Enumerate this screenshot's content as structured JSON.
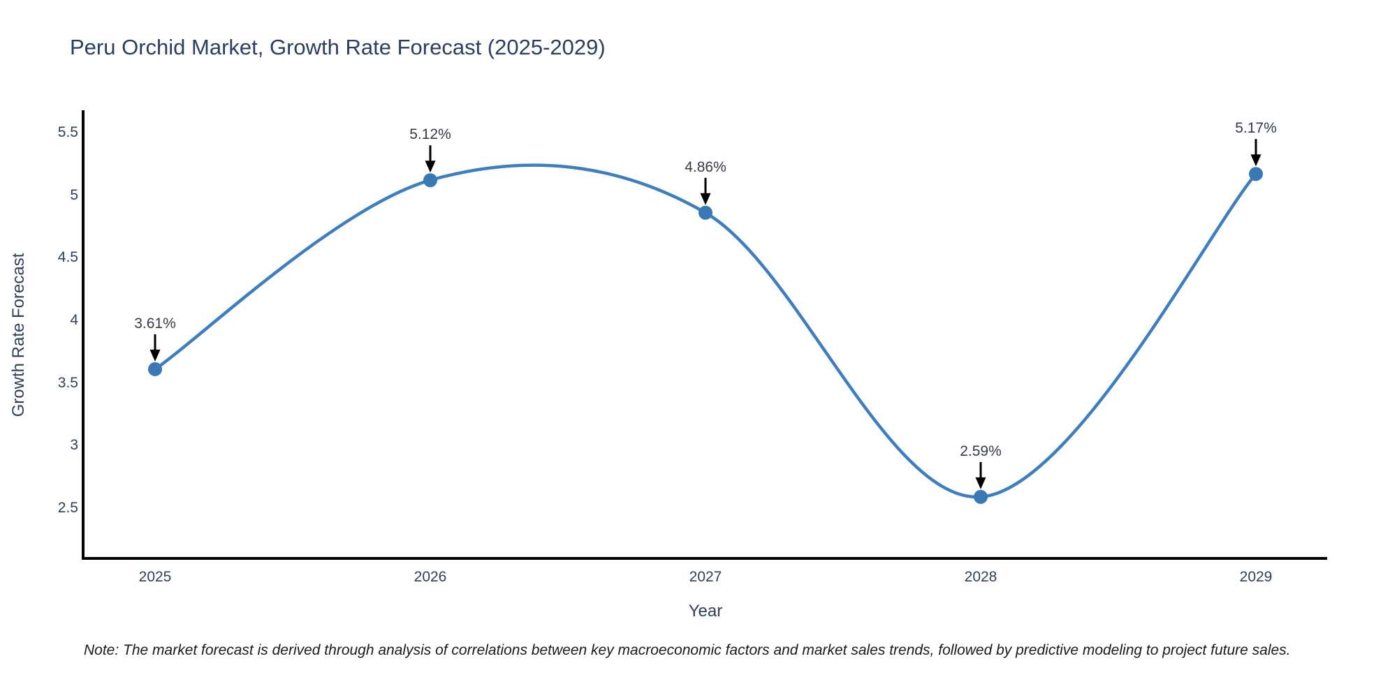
{
  "title": "Peru Orchid Market, Growth Rate Forecast (2025-2029)",
  "chart_data": {
    "type": "line",
    "line_shape": "spline",
    "categories": [
      "2025",
      "2026",
      "2027",
      "2028",
      "2029"
    ],
    "series": [
      {
        "name": "Growth Rate Forecast",
        "values": [
          3.61,
          5.12,
          4.86,
          2.59,
          5.17
        ]
      }
    ],
    "point_labels": [
      "3.61%",
      "5.12%",
      "4.86%",
      "2.59%",
      "5.17%"
    ],
    "title": "Peru Orchid Market, Growth Rate Forecast (2025-2029)",
    "xlabel": "Year",
    "ylabel": "Growth Rate Forecast",
    "yticks": [
      5.5,
      5,
      4.5,
      4,
      3.5,
      3,
      2.5
    ],
    "ylim": [
      2.1,
      5.68
    ],
    "grid": false,
    "legend": "none",
    "colors": {
      "line": "#3c7ebf",
      "marker": "#3878b4",
      "arrow": "#000000",
      "spine": "#000000",
      "title": "#2a3f5f",
      "tick": "#2f3f57",
      "annotation": "#343b46"
    }
  },
  "note": "Note: The market forecast is derived through analysis of correlations between key macroeconomic factors and market sales trends, followed by predictive modeling to project future sales."
}
